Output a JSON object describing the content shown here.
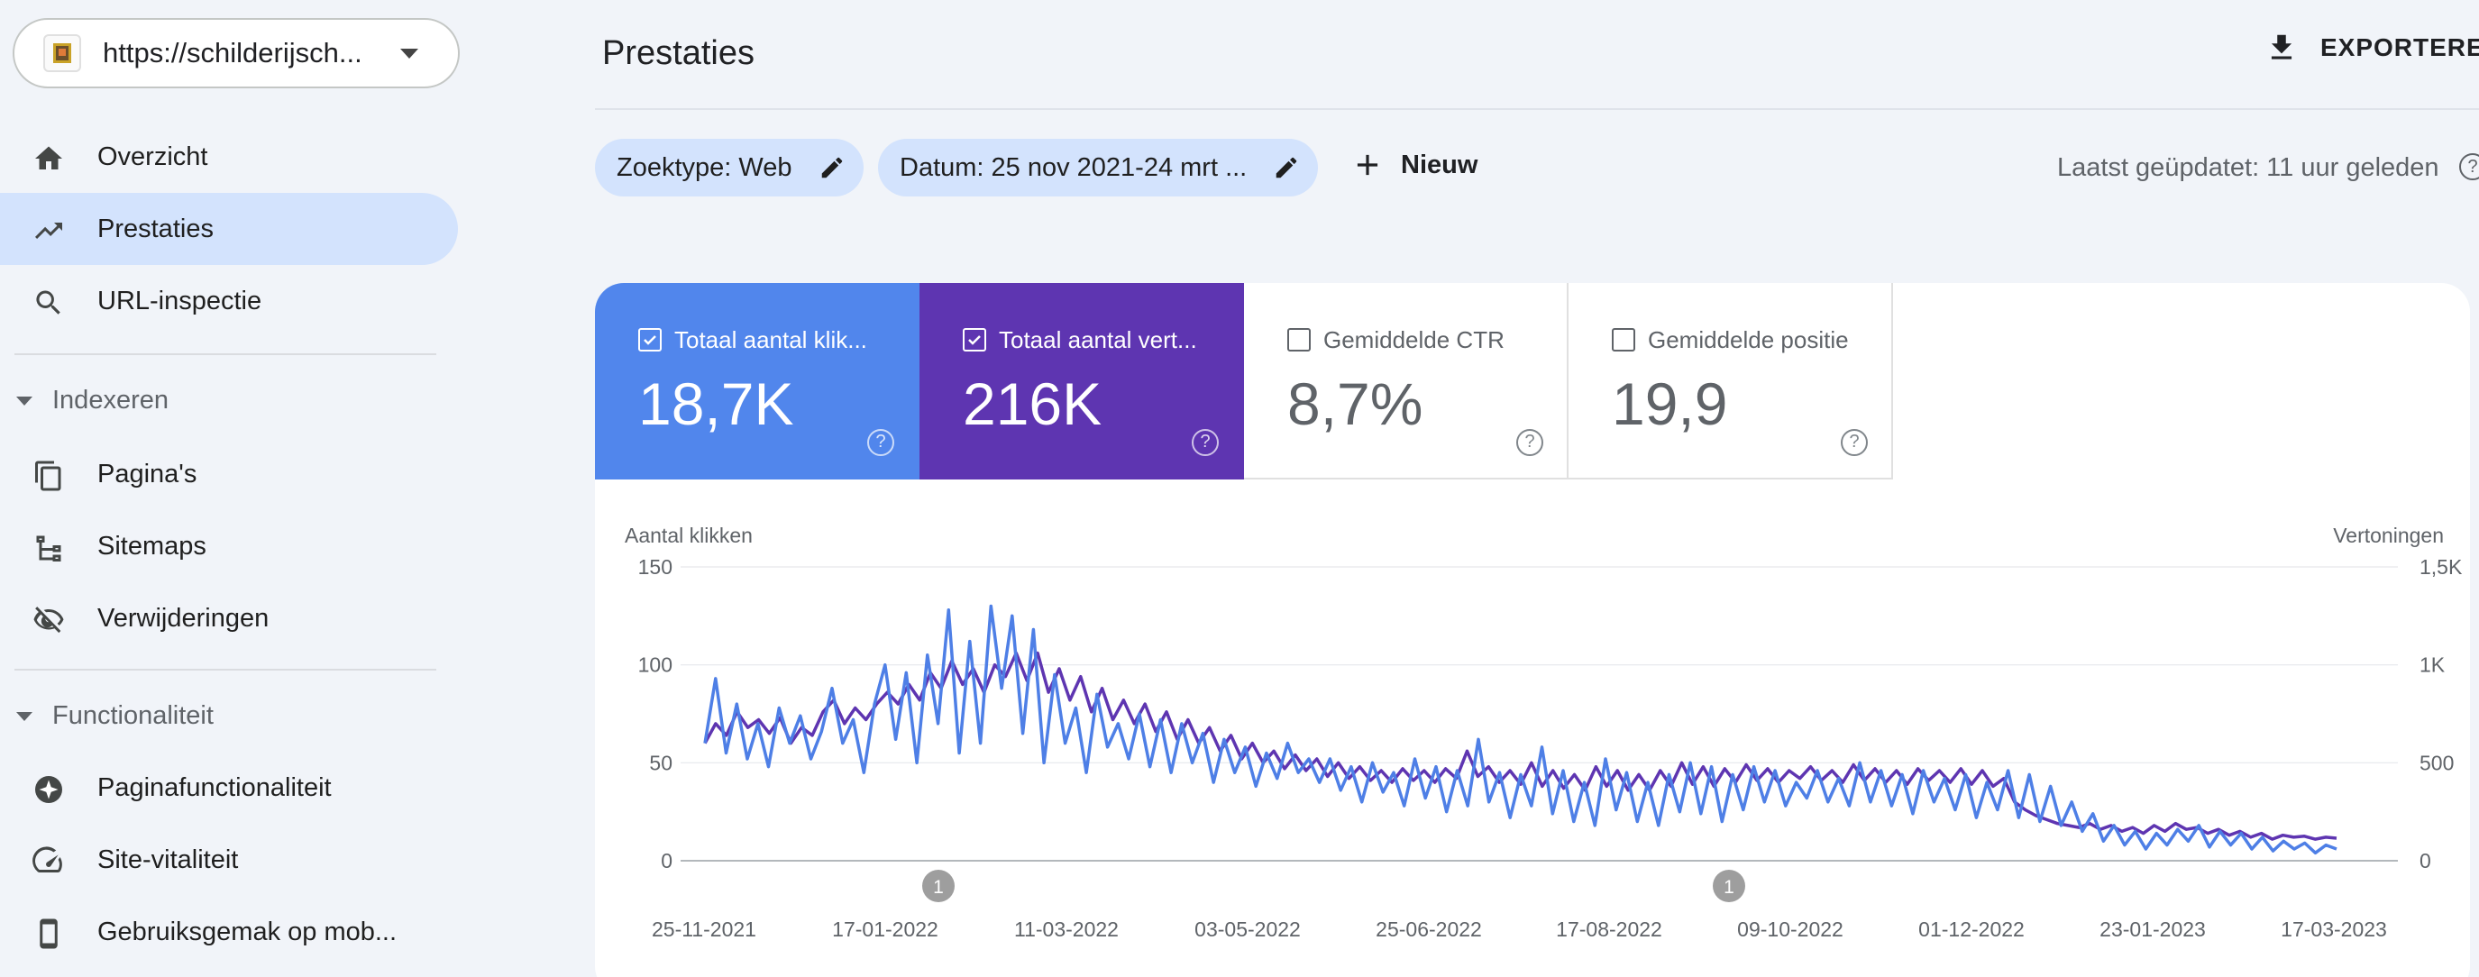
{
  "property": {
    "url": "https://schilderijsch..."
  },
  "sidebar": {
    "items": [
      {
        "label": "Overzicht",
        "icon": "home-icon"
      },
      {
        "label": "Prestaties",
        "icon": "trending-up-icon",
        "active": true
      },
      {
        "label": "URL-inspectie",
        "icon": "search-icon"
      }
    ],
    "sections": [
      {
        "label": "Indexeren",
        "items": [
          {
            "label": "Pagina's",
            "icon": "pages-icon"
          },
          {
            "label": "Sitemaps",
            "icon": "sitemap-icon"
          },
          {
            "label": "Verwijderingen",
            "icon": "eye-off-icon"
          }
        ]
      },
      {
        "label": "Functionaliteit",
        "items": [
          {
            "label": "Paginafunctionaliteit",
            "icon": "sparkle-icon"
          },
          {
            "label": "Site-vitaliteit",
            "icon": "speedometer-icon"
          },
          {
            "label": "Gebruiksgemak op mob...",
            "icon": "phone-icon"
          }
        ]
      }
    ]
  },
  "header": {
    "title": "Prestaties",
    "export_label": "EXPORTEREN"
  },
  "filters": {
    "chips": [
      {
        "label": "Zoektype: Web"
      },
      {
        "label": "Datum: 25 nov 2021-24 mrt ..."
      }
    ],
    "new_label": "Nieuw",
    "updated": "Laatst geüpdatet: 11 uur geleden",
    "help": "?"
  },
  "metrics": [
    {
      "label": "Totaal aantal klik...",
      "value": "18,7K",
      "checked": true,
      "color": "#5186ec"
    },
    {
      "label": "Totaal aantal vert...",
      "value": "216K",
      "checked": true,
      "color": "#5e35b1"
    },
    {
      "label": "Gemiddelde CTR",
      "value": "8,7%",
      "checked": false
    },
    {
      "label": "Gemiddelde positie",
      "value": "19,9",
      "checked": false
    }
  ],
  "chart_data": {
    "type": "line",
    "x_labels": [
      "25-11-2021",
      "17-01-2022",
      "11-03-2022",
      "03-05-2022",
      "25-06-2022",
      "17-08-2022",
      "09-10-2022",
      "01-12-2022",
      "23-01-2023",
      "17-03-2023"
    ],
    "ylabel_left": "Aantal klikken",
    "ylabel_right": "Vertoningen",
    "y_left_ticks": [
      "0",
      "50",
      "100",
      "150"
    ],
    "y_right_ticks": [
      "0",
      "500",
      "1K",
      "1,5K"
    ],
    "ylim_left": [
      0,
      150
    ],
    "ylim_right": [
      0,
      1500
    ],
    "annotations": [
      {
        "label": "1",
        "date": "2022-01-31"
      },
      {
        "label": "1",
        "date": "2022-10-06"
      }
    ],
    "series": [
      {
        "color": "#4e7fe6",
        "axis": "left",
        "values": [
          60,
          93,
          55,
          80,
          52,
          70,
          48,
          78,
          60,
          74,
          52,
          66,
          88,
          60,
          72,
          45,
          80,
          100,
          62,
          96,
          50,
          105,
          70,
          128,
          55,
          112,
          60,
          130,
          88,
          125,
          65,
          118,
          50,
          95,
          60,
          78,
          45,
          85,
          58,
          70,
          52,
          75,
          48,
          72,
          45,
          70,
          50,
          65,
          40,
          62,
          45,
          58,
          38,
          55,
          42,
          60,
          45,
          52,
          40,
          52,
          36,
          48,
          30,
          50,
          35,
          45,
          28,
          52,
          32,
          48,
          25,
          46,
          28,
          62,
          30,
          45,
          22,
          44,
          28,
          58,
          24,
          46,
          20,
          40,
          18,
          52,
          26,
          45,
          20,
          40,
          18,
          44,
          25,
          50,
          24,
          48,
          20,
          44,
          26,
          48,
          30,
          46,
          28,
          40,
          32,
          46,
          30,
          42,
          28,
          50,
          30,
          46,
          28,
          44,
          24,
          46,
          30,
          42,
          26,
          44,
          22,
          40,
          26,
          46,
          22,
          44,
          20,
          38,
          18,
          30,
          15,
          24,
          10,
          18,
          8,
          15,
          6,
          14,
          8,
          16,
          10,
          18,
          7,
          15,
          8,
          14,
          6,
          12,
          5,
          10,
          6,
          9,
          4,
          8,
          6
        ]
      },
      {
        "color": "#5e35b1",
        "axis": "right",
        "values": [
          600,
          700,
          640,
          760,
          680,
          720,
          650,
          730,
          600,
          680,
          640,
          760,
          820,
          700,
          780,
          720,
          800,
          860,
          800,
          900,
          820,
          960,
          880,
          1020,
          900,
          980,
          860,
          1000,
          940,
          1060,
          920,
          1060,
          860,
          980,
          820,
          940,
          760,
          880,
          720,
          820,
          700,
          800,
          660,
          760,
          620,
          720,
          600,
          680,
          560,
          640,
          520,
          600,
          500,
          560,
          470,
          540,
          460,
          520,
          430,
          500,
          420,
          480,
          410,
          460,
          400,
          470,
          410,
          460,
          400,
          470,
          420,
          560,
          430,
          480,
          400,
          460,
          390,
          500,
          380,
          460,
          370,
          440,
          360,
          480,
          380,
          460,
          360,
          440,
          360,
          460,
          380,
          500,
          390,
          480,
          380,
          470,
          400,
          490,
          410,
          470,
          400,
          460,
          420,
          480,
          410,
          460,
          400,
          490,
          410,
          470,
          400,
          460,
          390,
          470,
          410,
          460,
          400,
          470,
          390,
          460,
          380,
          420,
          300,
          260,
          230,
          210,
          190,
          180,
          170,
          190,
          160,
          180,
          150,
          170,
          140,
          180,
          150,
          190,
          160,
          170,
          140,
          160,
          130,
          150,
          120,
          140,
          110,
          130,
          120,
          125,
          110,
          120,
          115
        ]
      }
    ]
  }
}
